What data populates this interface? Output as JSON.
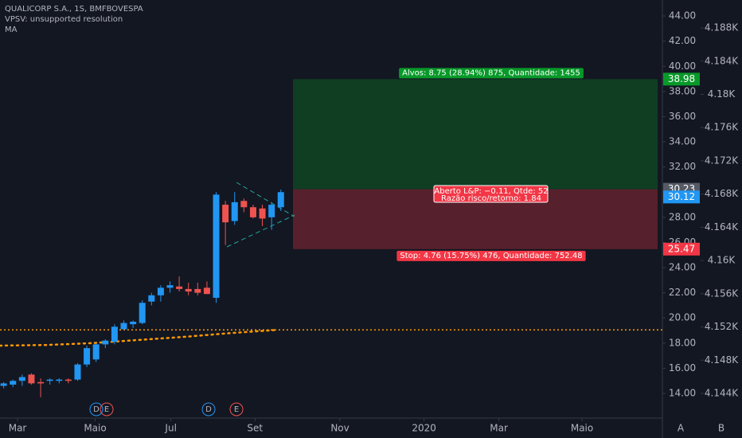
{
  "header": {
    "title": "QUALICORP S.A., 1S, BMFBOVESPA",
    "indicator_1": "VPSV: unsupported resolution",
    "indicator_2": "MA"
  },
  "chart_data": {
    "type": "candlestick",
    "x": [
      0.4,
      1.4,
      2.4,
      3.4,
      4.4,
      5.4,
      6.4,
      7.4,
      8.4,
      9.4,
      10.4,
      11.4,
      12.4,
      13.4,
      14.4,
      15.4,
      16.4,
      17.4,
      18.4,
      19.4,
      20.4,
      21.4,
      22.4,
      23.4,
      24.4,
      25.4,
      26.4,
      27.4,
      28.4,
      29.4,
      30.4
    ],
    "open": [
      14.6,
      14.7,
      15.0,
      15.5,
      14.9,
      15.0,
      15.0,
      15.1,
      15.1,
      16.3,
      16.7,
      17.9,
      18.1,
      19.1,
      19.5,
      19.6,
      21.3,
      21.8,
      22.4,
      22.5,
      22.3,
      22.3,
      22.4,
      21.6,
      29.0,
      27.7,
      29.3,
      28.8,
      28.7,
      28.0,
      28.8
    ],
    "high": [
      14.9,
      15.1,
      15.5,
      15.6,
      15.2,
      15.2,
      15.2,
      15.2,
      16.4,
      17.8,
      18.0,
      18.3,
      19.5,
      19.8,
      19.8,
      21.4,
      22.0,
      22.6,
      22.9,
      23.3,
      22.8,
      22.8,
      22.9,
      30.0,
      29.3,
      30.0,
      29.5,
      29.0,
      29.0,
      29.2,
      30.2
    ],
    "low": [
      14.4,
      14.5,
      14.6,
      14.7,
      13.7,
      14.7,
      14.8,
      14.8,
      15.0,
      16.1,
      16.5,
      17.6,
      17.9,
      19.0,
      19.2,
      19.5,
      21.0,
      21.3,
      22.0,
      22.1,
      21.8,
      21.8,
      21.9,
      21.2,
      25.8,
      27.4,
      28.4,
      27.9,
      27.3,
      27.0,
      28.5
    ],
    "close": [
      14.8,
      15.0,
      15.3,
      14.8,
      14.8,
      15.1,
      15.1,
      15.0,
      16.3,
      17.6,
      17.9,
      18.2,
      19.3,
      19.6,
      19.7,
      21.2,
      21.8,
      22.4,
      22.6,
      22.3,
      22.1,
      22.0,
      21.9,
      29.8,
      27.6,
      29.2,
      28.8,
      28.0,
      27.9,
      29.0,
      30.0
    ],
    "up_color": "#2196f3",
    "down_color": "#ef5350",
    "ma": {
      "color": "#ff9800",
      "x": [
        0,
        5,
        10,
        15,
        20,
        25,
        30
      ],
      "values": [
        17.8,
        17.85,
        18.0,
        18.25,
        18.5,
        18.8,
        19.05
      ]
    },
    "horizontal_line": 19.05,
    "ylim": [
      12.04,
      45.27
    ],
    "yticks": [
      {
        "value": 14,
        "label": "14.00"
      },
      {
        "value": 16,
        "label": "16.00"
      },
      {
        "value": 18,
        "label": "18.00"
      },
      {
        "value": 20,
        "label": "20.00"
      },
      {
        "value": 22,
        "label": "22.00"
      },
      {
        "value": 24,
        "label": "24.00"
      },
      {
        "value": 26,
        "label": "26.00"
      },
      {
        "value": 28,
        "label": "28.00"
      },
      {
        "value": 30,
        "label": "30.00"
      },
      {
        "value": 32,
        "label": "32.00"
      },
      {
        "value": 34,
        "label": "34.00"
      },
      {
        "value": 36,
        "label": "36.00"
      },
      {
        "value": 38,
        "label": "38.00"
      },
      {
        "value": 40,
        "label": "40.00"
      },
      {
        "value": 42,
        "label": "42.00"
      },
      {
        "value": 44,
        "label": "44.00"
      }
    ],
    "y2lim": [
      4141.03,
      4191.36
    ],
    "y2ticks": [
      {
        "value": 4144,
        "label": "4.144K"
      },
      {
        "value": 4148,
        "label": "4.148K"
      },
      {
        "value": 4152,
        "label": "4.152K"
      },
      {
        "value": 4156,
        "label": "4.156K"
      },
      {
        "value": 4160,
        "label": "4.16K"
      },
      {
        "value": 4164,
        "label": "4.164K"
      },
      {
        "value": 4168,
        "label": "4.168K"
      },
      {
        "value": 4172,
        "label": "4.172K"
      },
      {
        "value": 4176,
        "label": "4.176K"
      },
      {
        "value": 4180,
        "label": "4.18K"
      },
      {
        "value": 4184,
        "label": "4.184K"
      },
      {
        "value": 4188,
        "label": "4.188K"
      }
    ],
    "xlim": [
      0,
      71.7
    ],
    "xticks": [
      {
        "value": 1.9,
        "label": "Mar"
      },
      {
        "value": 10.3,
        "label": "Maio"
      },
      {
        "value": 18.5,
        "label": "Jul"
      },
      {
        "value": 27.6,
        "label": "Set"
      },
      {
        "value": 36.8,
        "label": "Nov"
      },
      {
        "value": 45.9,
        "label": "2020"
      },
      {
        "value": 54.0,
        "label": "Mar"
      },
      {
        "value": 63.0,
        "label": "Maio"
      }
    ],
    "position": {
      "target": 38.98,
      "entry": 30.23,
      "stop": 25.47,
      "last_price": 30.12,
      "target_label": "Alvos: 8.75 (28.94%) 875, Quantidade: 1455",
      "open_label": "Aberto L&P: −0.11, Qtde: 52",
      "ratio_label": "Razão risco/retorno: 1.84",
      "stop_label": "Stop: 4.76 (15.75%) 476, Quantidade: 752.48"
    },
    "events": [
      "D",
      "E",
      "D",
      "E"
    ],
    "scale_buttons": [
      "A",
      "B"
    ]
  }
}
